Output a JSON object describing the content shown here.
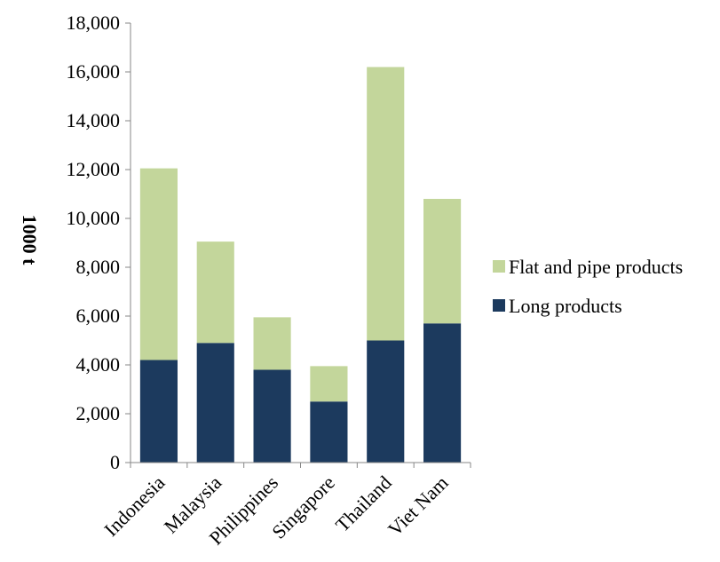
{
  "chart_data": {
    "type": "bar",
    "stacked": true,
    "categories": [
      "Indonesia",
      "Malaysia",
      "Philippines",
      "Singapore",
      "Thailand",
      "Viet Nam"
    ],
    "series": [
      {
        "name": "Long products",
        "values": [
          4200,
          4900,
          3800,
          2500,
          5000,
          5700
        ],
        "color": "#1c3a5e"
      },
      {
        "name": "Flat and pipe products",
        "values": [
          7850,
          4150,
          2150,
          1450,
          11200,
          5100
        ],
        "color": "#c3d69b"
      }
    ],
    "ylabel": "1000 t",
    "ylim": [
      0,
      18000
    ],
    "yticks": [
      0,
      2000,
      4000,
      6000,
      8000,
      10000,
      12000,
      14000,
      16000,
      18000
    ],
    "ytick_labels": [
      "0",
      "2,000",
      "4,000",
      "6,000",
      "8,000",
      "10,000",
      "12,000",
      "14,000",
      "16,000",
      "18,000"
    ],
    "legend": {
      "placement": "right",
      "entries": [
        "Flat and pipe products",
        "Long products"
      ]
    },
    "grid": false
  }
}
